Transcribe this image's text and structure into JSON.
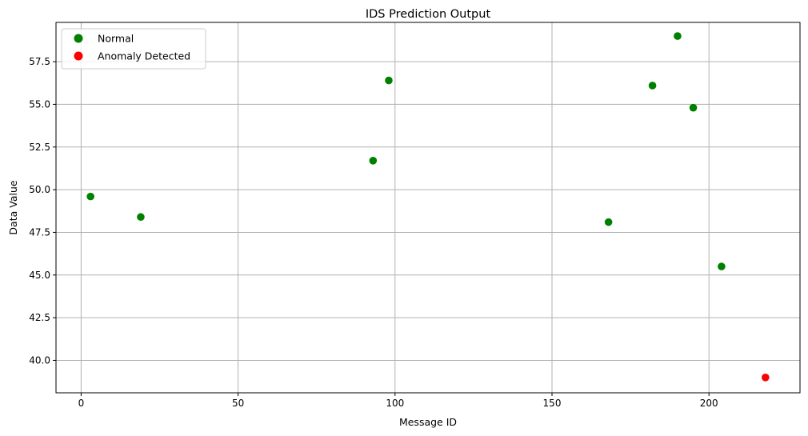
{
  "chart_data": {
    "type": "scatter",
    "title": "IDS Prediction Output",
    "xlabel": "Message ID",
    "ylabel": "Data Value",
    "xlim": [
      -8,
      229
    ],
    "ylim": [
      38.1,
      59.8
    ],
    "xticks": [
      0,
      50,
      100,
      150,
      200
    ],
    "yticks": [
      40.0,
      42.5,
      45.0,
      47.5,
      50.0,
      52.5,
      55.0,
      57.5
    ],
    "xtick_labels": [
      "0",
      "50",
      "100",
      "150",
      "200"
    ],
    "ytick_labels": [
      "40.0",
      "42.5",
      "45.0",
      "47.5",
      "50.0",
      "52.5",
      "55.0",
      "57.5"
    ],
    "grid": true,
    "legend_position": "top-left",
    "series": [
      {
        "name": "Normal",
        "color": "#008000",
        "points": [
          {
            "x": 3,
            "y": 49.6
          },
          {
            "x": 19,
            "y": 48.4
          },
          {
            "x": 93,
            "y": 51.7
          },
          {
            "x": 98,
            "y": 56.4
          },
          {
            "x": 168,
            "y": 48.1
          },
          {
            "x": 182,
            "y": 56.1
          },
          {
            "x": 190,
            "y": 59.0
          },
          {
            "x": 195,
            "y": 54.8
          },
          {
            "x": 204,
            "y": 45.5
          }
        ]
      },
      {
        "name": "Anomaly Detected",
        "color": "#ff0000",
        "points": [
          {
            "x": 218,
            "y": 39.0
          }
        ]
      }
    ]
  }
}
